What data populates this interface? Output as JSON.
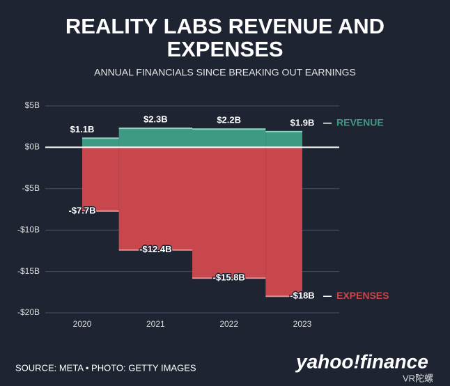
{
  "chart_data": {
    "type": "step-area",
    "title": "REALITY LABS REVENUE AND EXPENSES",
    "subtitle": "ANNUAL FINANCIALS SINCE BREAKING OUT EARNINGS",
    "categories": [
      "2020",
      "2021",
      "2022",
      "2023"
    ],
    "series": [
      {
        "name": "REVENUE",
        "color": "#3f9a83",
        "values": [
          1.1,
          2.3,
          2.2,
          1.9
        ],
        "value_labels": [
          "$1.1B",
          "$2.3B",
          "$2.2B",
          "$1.9B"
        ]
      },
      {
        "name": "EXPENSES",
        "color": "#c8474d",
        "values": [
          -7.7,
          -12.4,
          -15.8,
          -18
        ],
        "value_labels": [
          "-$7.7B",
          "-$12.4B",
          "-$15.8B",
          "-$18B"
        ]
      }
    ],
    "ylim": [
      -20,
      5
    ],
    "yticks": [
      {
        "value": 5,
        "label": "$5B"
      },
      {
        "value": 0,
        "label": "$0B"
      },
      {
        "value": -5,
        "label": "-$5B"
      },
      {
        "value": -10,
        "label": "-$10B"
      },
      {
        "value": -15,
        "label": "-$15B"
      },
      {
        "value": -20,
        "label": "-$20B"
      }
    ],
    "grid": true,
    "source": "SOURCE: META • PHOTO: GETTY IMAGES",
    "logo": "yahoo!finance",
    "watermark": "VR陀螺"
  }
}
